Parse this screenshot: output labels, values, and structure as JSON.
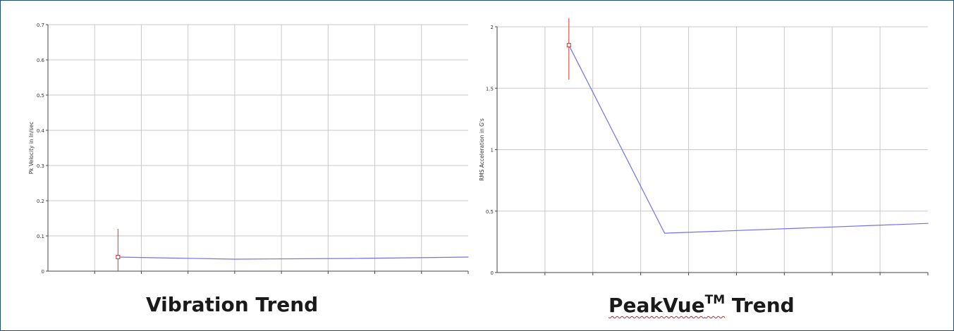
{
  "chart_data": [
    {
      "type": "line",
      "title": "Vibration Trend",
      "xlabel": "",
      "ylabel": "Pk Velocity in In/sec",
      "ylim": [
        0,
        0.7
      ],
      "yticks": [
        "0",
        "0.1",
        "0.2",
        "0.3",
        "0.4",
        "0.5",
        "0.6",
        "0.7"
      ],
      "x_divisions": 9,
      "grid": true,
      "series": [
        {
          "x": [
            1.5,
            4,
            6.5,
            9
          ],
          "values": [
            0.04,
            0.034,
            0.036,
            0.04
          ],
          "color": "#7070f0"
        }
      ],
      "marker": {
        "x": 1.5,
        "value": 0.04,
        "color": "#d03030"
      },
      "error_bar": {
        "x": 1.5,
        "low": 0.0,
        "high": 0.12,
        "color": "#e03030"
      }
    },
    {
      "type": "line",
      "title": "PeakVue",
      "title_superscript": "TM",
      "title_suffix": "Trend",
      "xlabel": "",
      "ylabel": "RMS Acceleration in G's",
      "ylim": [
        0,
        2
      ],
      "yticks": [
        "0",
        "0.5",
        "1",
        "1.5",
        "2"
      ],
      "x_divisions": 9,
      "grid": true,
      "series": [
        {
          "x": [
            1.5,
            3.5,
            9
          ],
          "values": [
            1.85,
            0.32,
            0.4
          ],
          "color": "#7070f0"
        }
      ],
      "marker": {
        "x": 1.5,
        "value": 1.85,
        "color": "#d03030"
      },
      "error_bar": {
        "x": 1.5,
        "low": 1.57,
        "high": 2.07,
        "color": "#e03030"
      }
    }
  ]
}
